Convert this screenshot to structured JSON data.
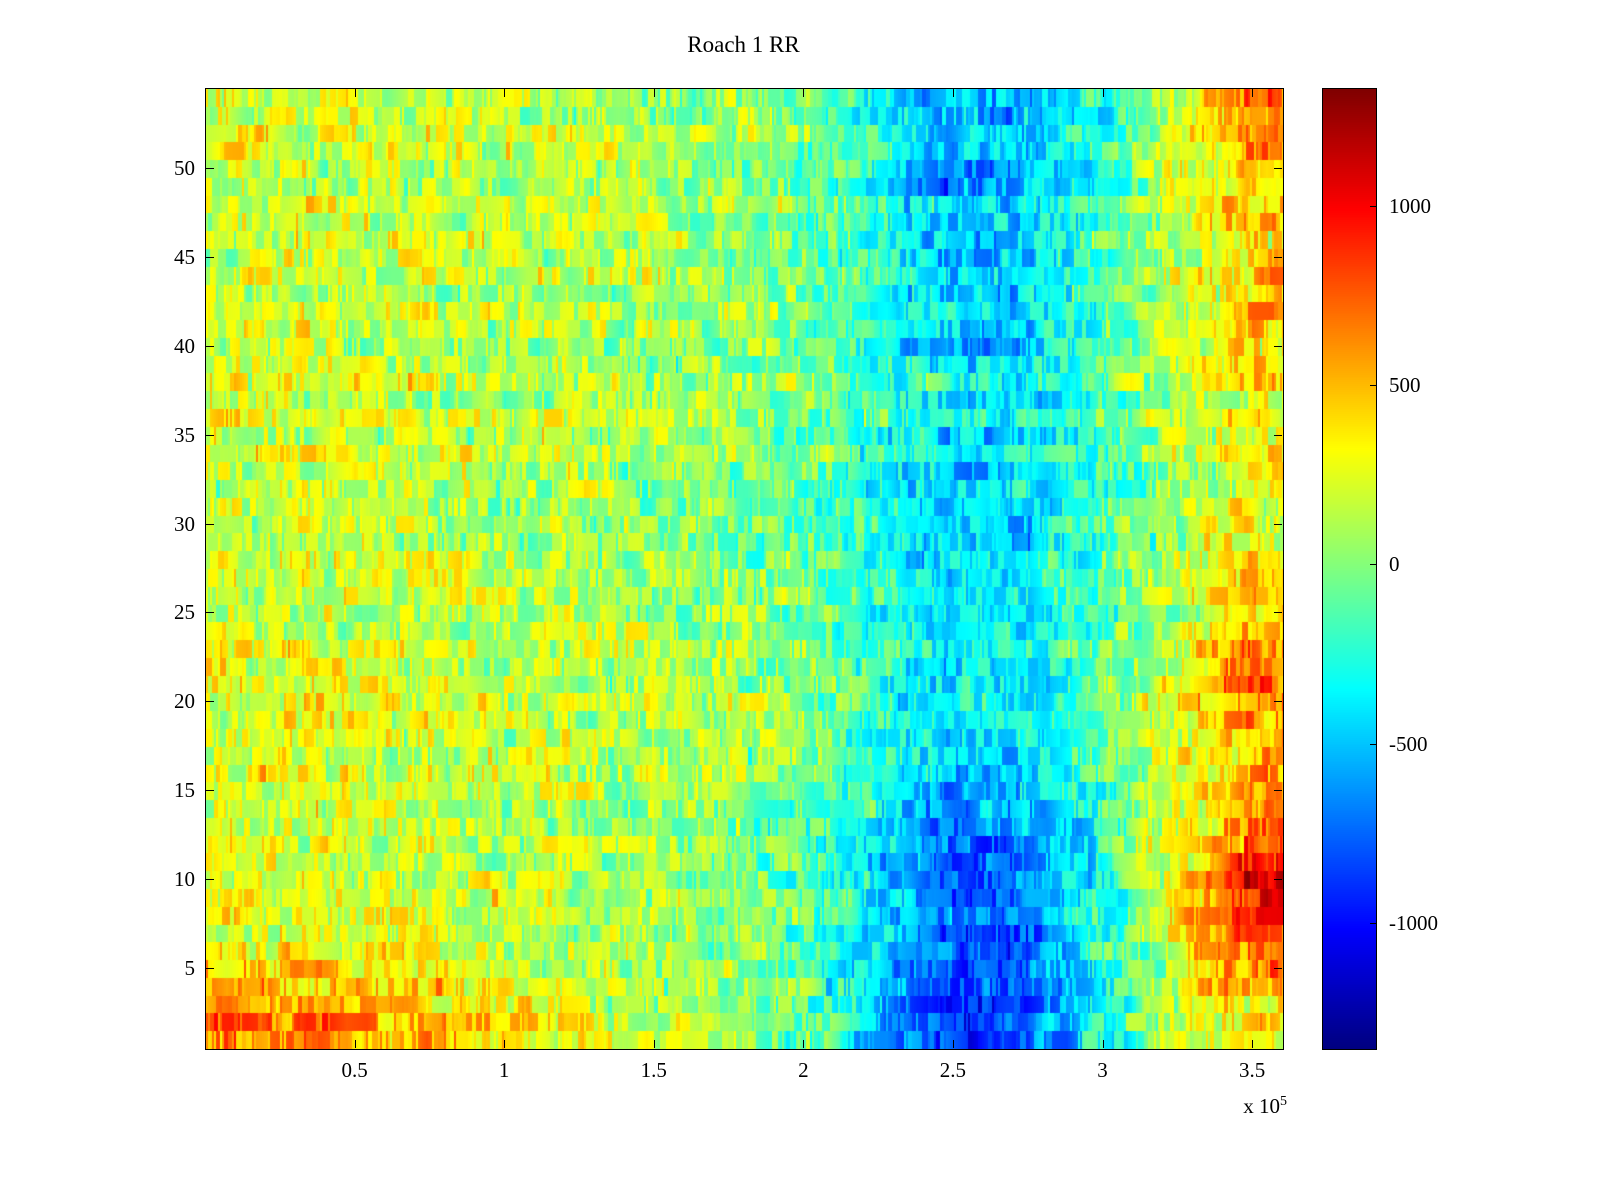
{
  "title": "Roach 1 RR",
  "chart_data": {
    "type": "heatmap",
    "title": "Roach 1 RR",
    "colormap": "jet",
    "x_axis": {
      "min": 0,
      "max": 360000,
      "ticks": [
        50000,
        100000,
        150000,
        200000,
        250000,
        300000,
        350000
      ],
      "tick_labels": [
        "0.5",
        "1",
        "1.5",
        "2",
        "2.5",
        "3",
        "3.5"
      ],
      "exponent": {
        "base": "x 10",
        "exp": "5"
      }
    },
    "y_axis": {
      "min": 0.5,
      "max": 54.5,
      "rows": 54,
      "ticks": [
        5,
        10,
        15,
        20,
        25,
        30,
        35,
        40,
        45,
        50
      ],
      "tick_labels": [
        "5",
        "10",
        "15",
        "20",
        "25",
        "30",
        "35",
        "40",
        "45",
        "50"
      ]
    },
    "colorbar": {
      "min": -1350,
      "max": 1330,
      "ticks": [
        -1000,
        -500,
        0,
        500,
        1000
      ],
      "tick_labels": [
        "-1000",
        "-500",
        "0",
        "500",
        "1000"
      ]
    },
    "grid": {
      "note": "coarse estimate of mean heat values, 14 bands top-to-bottom x 18 columns left-to-right, in colorbar units",
      "cols": 18,
      "rows": 14,
      "values": [
        [
          200,
          180,
          170,
          160,
          150,
          140,
          120,
          100,
          80,
          0,
          -150,
          -350,
          -550,
          -550,
          -400,
          -100,
          300,
          650
        ],
        [
          220,
          200,
          180,
          160,
          150,
          140,
          120,
          100,
          60,
          0,
          -150,
          -400,
          -600,
          -550,
          -350,
          -50,
          250,
          500
        ],
        [
          200,
          190,
          180,
          170,
          150,
          130,
          110,
          90,
          50,
          0,
          -100,
          -350,
          -500,
          -500,
          -300,
          0,
          200,
          450
        ],
        [
          210,
          200,
          180,
          160,
          150,
          130,
          110,
          90,
          60,
          0,
          -100,
          -300,
          -450,
          -450,
          -250,
          0,
          250,
          520
        ],
        [
          200,
          190,
          180,
          160,
          140,
          120,
          100,
          80,
          50,
          0,
          -80,
          -250,
          -400,
          -400,
          -250,
          0,
          150,
          300
        ],
        [
          200,
          190,
          170,
          150,
          140,
          120,
          100,
          80,
          40,
          -20,
          -120,
          -300,
          -450,
          -420,
          -250,
          -50,
          150,
          280
        ],
        [
          210,
          200,
          180,
          160,
          140,
          120,
          100,
          80,
          40,
          0,
          -100,
          -280,
          -420,
          -400,
          -230,
          0,
          200,
          320
        ],
        [
          220,
          210,
          190,
          170,
          150,
          130,
          110,
          90,
          50,
          0,
          -80,
          -250,
          -380,
          -350,
          -200,
          0,
          260,
          420
        ],
        [
          230,
          220,
          200,
          180,
          160,
          140,
          120,
          100,
          60,
          0,
          -100,
          -280,
          -420,
          -380,
          -200,
          50,
          350,
          720
        ],
        [
          240,
          220,
          200,
          180,
          160,
          140,
          120,
          100,
          60,
          0,
          -120,
          -320,
          -460,
          -420,
          -230,
          0,
          260,
          460
        ],
        [
          250,
          230,
          210,
          190,
          170,
          150,
          120,
          100,
          60,
          -20,
          -150,
          -400,
          -600,
          -550,
          -300,
          0,
          300,
          520
        ],
        [
          260,
          240,
          220,
          200,
          180,
          150,
          130,
          100,
          60,
          -20,
          -180,
          -500,
          -750,
          -700,
          -400,
          0,
          520,
          1080
        ],
        [
          350,
          320,
          280,
          240,
          200,
          170,
          140,
          110,
          70,
          0,
          -200,
          -550,
          -800,
          -750,
          -450,
          -50,
          420,
          820
        ],
        [
          650,
          620,
          580,
          520,
          400,
          300,
          200,
          150,
          100,
          0,
          -250,
          -650,
          -900,
          -850,
          -500,
          -100,
          200,
          350
        ]
      ]
    },
    "noise": {
      "cell_amplitude": 240,
      "lowfreq_amplitude": 140,
      "row_amplitude": 140,
      "seed": 42
    }
  }
}
